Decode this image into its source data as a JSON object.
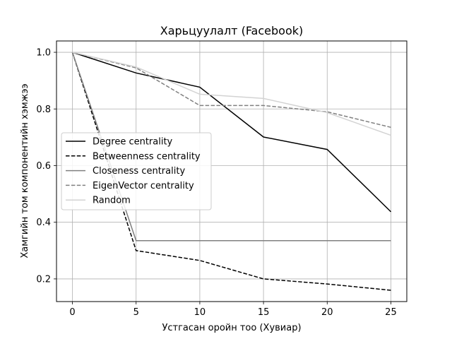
{
  "chart_data": {
    "type": "line",
    "title": "Харьцуулалт (Facebook)",
    "xlabel": "Устгасан оройн тоо (Хувиар)",
    "ylabel": "Хамгийн том компонентийн хэмжээ",
    "x": [
      0,
      5,
      10,
      15,
      20,
      25
    ],
    "xlim": [
      -1.25,
      26.25
    ],
    "ylim": [
      0.12,
      1.04
    ],
    "xticks": [
      0,
      5,
      10,
      15,
      20,
      25
    ],
    "yticks": [
      0.2,
      0.4,
      0.6,
      0.8,
      1.0
    ],
    "xtick_labels": [
      "0",
      "5",
      "10",
      "15",
      "20",
      "25"
    ],
    "ytick_labels": [
      "0.2",
      "0.4",
      "0.6",
      "0.8",
      "1.0"
    ],
    "grid": true,
    "legend_position": "center-left",
    "series": [
      {
        "name": "Degree centrality",
        "values": [
          1.0,
          0.927,
          0.877,
          0.701,
          0.657,
          0.437
        ],
        "color": "#000000",
        "dash": "solid"
      },
      {
        "name": "Betweenness centrality",
        "values": [
          1.0,
          0.3,
          0.265,
          0.2,
          0.182,
          0.16
        ],
        "color": "#000000",
        "dash": "dashed"
      },
      {
        "name": "Closeness centrality",
        "values": [
          1.0,
          0.335,
          0.335,
          0.335,
          0.335,
          0.335
        ],
        "color": "#808080",
        "dash": "solid"
      },
      {
        "name": "EigenVector centrality",
        "values": [
          1.0,
          0.945,
          0.812,
          0.812,
          0.79,
          0.735
        ],
        "color": "#808080",
        "dash": "dashed"
      },
      {
        "name": "Random",
        "values": [
          1.0,
          0.948,
          0.852,
          0.837,
          0.787,
          0.707
        ],
        "color": "#d3d3d3",
        "dash": "solid"
      }
    ]
  }
}
